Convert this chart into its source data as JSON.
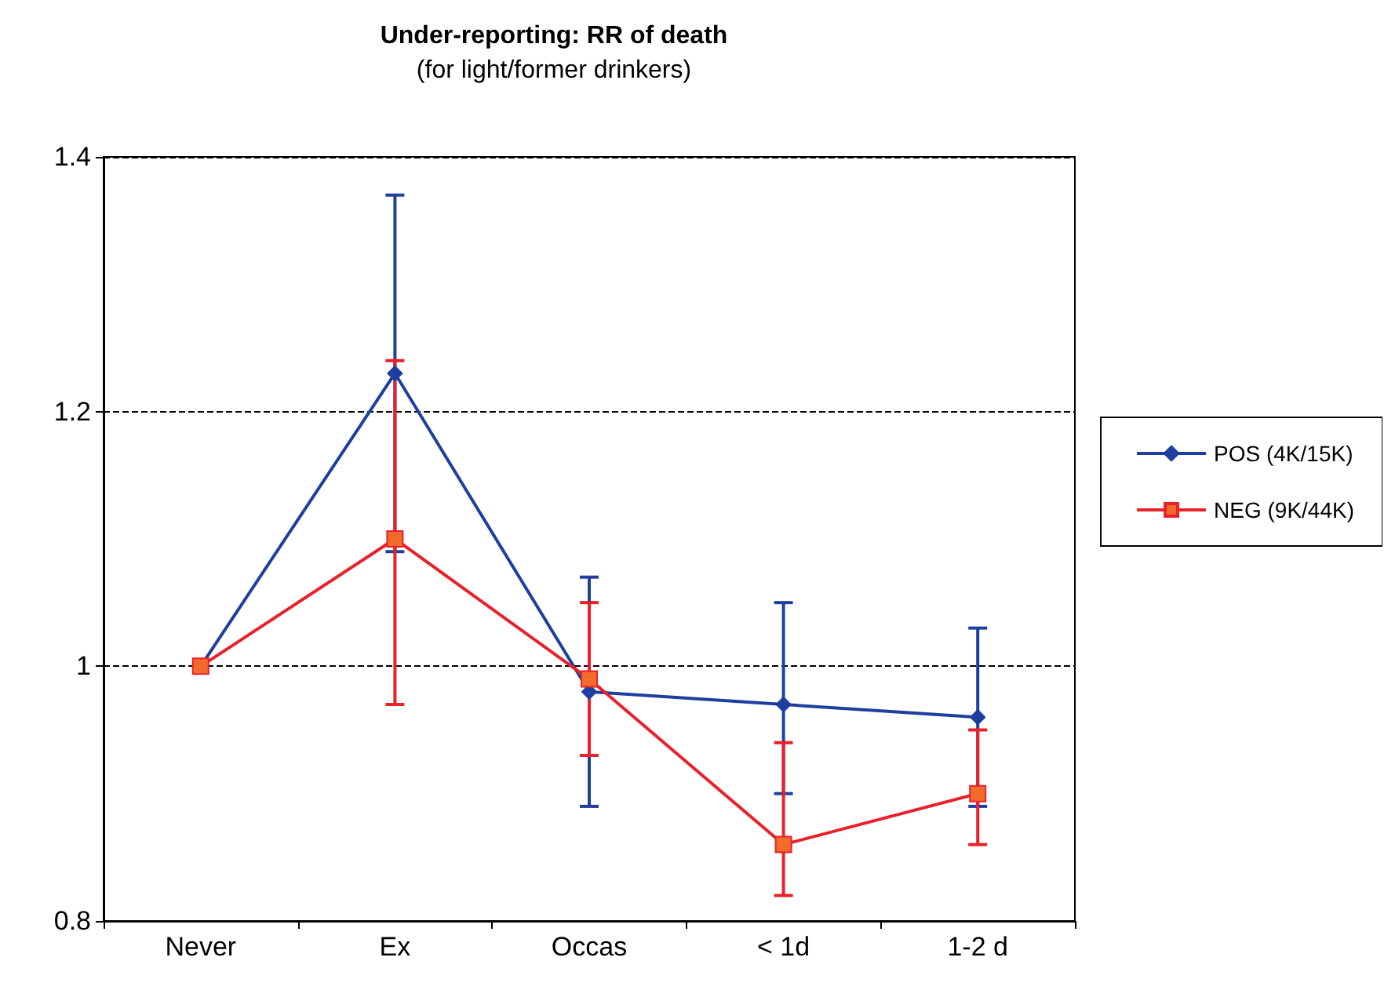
{
  "chart_data": {
    "type": "line",
    "title": "Under-reporting: RR of death",
    "subtitle": "(for light/former drinkers)",
    "categories": [
      "Never",
      "Ex",
      "Occas",
      "< 1d",
      "1-2 d"
    ],
    "series": [
      {
        "name": "POS (4K/15K)",
        "color": "#1f3f9f",
        "marker": "diamond",
        "values": [
          1.0,
          1.23,
          0.98,
          0.97,
          0.96
        ],
        "errors": [
          null,
          [
            1.09,
            1.37
          ],
          [
            0.89,
            1.07
          ],
          [
            0.9,
            1.05
          ],
          [
            0.89,
            1.03
          ]
        ]
      },
      {
        "name": "NEG (9K/44K)",
        "color": "#e8212b",
        "marker": "square",
        "values": [
          1.0,
          1.1,
          0.99,
          0.86,
          0.9
        ],
        "errors": [
          null,
          [
            0.97,
            1.24
          ],
          [
            0.93,
            1.05
          ],
          [
            0.82,
            0.94
          ],
          [
            0.86,
            0.95
          ]
        ]
      }
    ],
    "ylim": [
      0.8,
      1.4
    ],
    "yticks": [
      0.8,
      1,
      1.2,
      1.4
    ],
    "grid": "y",
    "legend": "right"
  }
}
